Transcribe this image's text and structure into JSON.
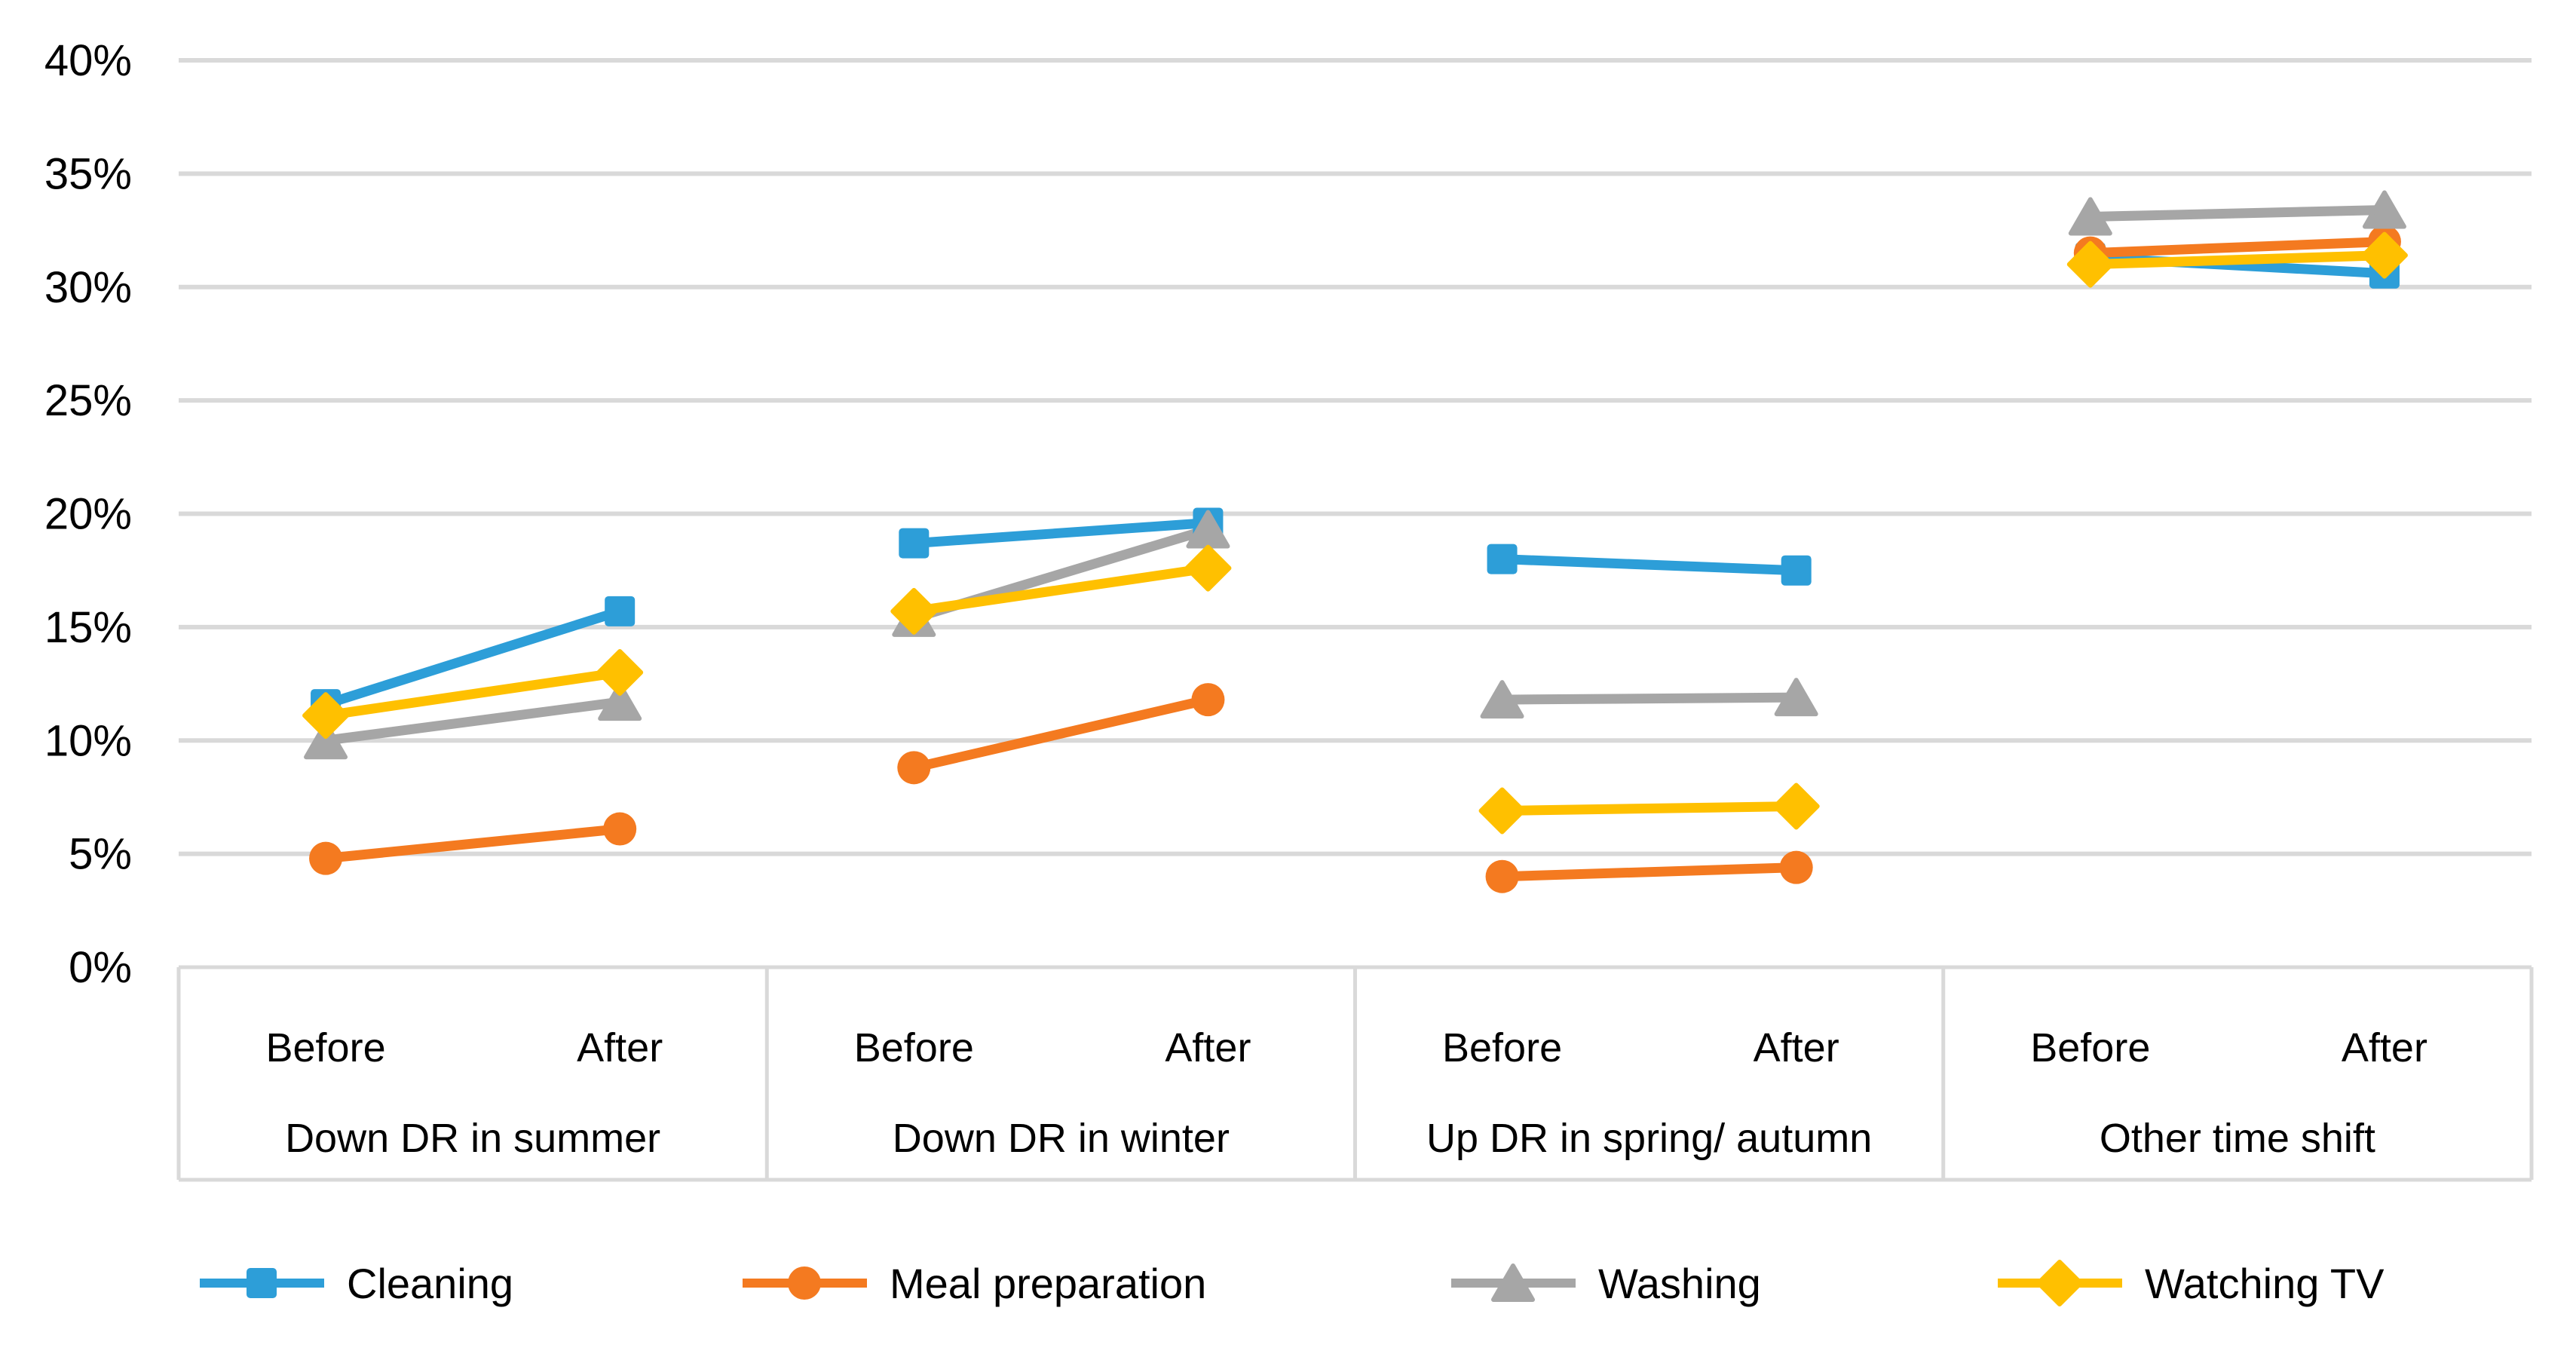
{
  "chart_data": {
    "type": "line",
    "title": "",
    "unit": "%",
    "y_axis": {
      "min": 0,
      "max": 40,
      "step": 5,
      "tick_labels": [
        "0%",
        "5%",
        "10%",
        "15%",
        "20%",
        "25%",
        "30%",
        "35%",
        "40%"
      ],
      "tick_suffix": "%"
    },
    "grid": true,
    "gridline_color": "#D9D9D9",
    "axis_band_color": "#D9D9D9",
    "text_color": "#000000",
    "x_groups": [
      {
        "label": "Down DR in summer",
        "categories": [
          "Before",
          "After"
        ]
      },
      {
        "label": "Down DR in winter",
        "categories": [
          "Before",
          "After"
        ]
      },
      {
        "label": "Up DR in spring/ autumn",
        "categories": [
          "Before",
          "After"
        ]
      },
      {
        "label": "Other time shift",
        "categories": [
          "Before",
          "After"
        ]
      }
    ],
    "series": [
      {
        "name": "Cleaning",
        "color": "#2D9ED8",
        "marker": "square",
        "values": [
          [
            11.6,
            15.7
          ],
          [
            18.7,
            19.6
          ],
          [
            18.0,
            17.5
          ],
          [
            31.3,
            30.6
          ]
        ]
      },
      {
        "name": "Meal preparation",
        "color": "#F47A20",
        "marker": "circle",
        "values": [
          [
            4.8,
            6.1
          ],
          [
            8.8,
            11.8
          ],
          [
            4.0,
            4.4
          ],
          [
            31.5,
            32.0
          ]
        ]
      },
      {
        "name": "Washing",
        "color": "#A6A6A6",
        "marker": "triangle",
        "values": [
          [
            10.0,
            11.7
          ],
          [
            15.4,
            19.3
          ],
          [
            11.8,
            11.9
          ],
          [
            33.1,
            33.4
          ]
        ]
      },
      {
        "name": "Watching TV",
        "color": "#FFC000",
        "marker": "diamond",
        "values": [
          [
            11.1,
            13.0
          ],
          [
            15.7,
            17.6
          ],
          [
            6.9,
            7.1
          ],
          [
            31.0,
            31.4
          ]
        ]
      }
    ],
    "legend": {
      "position": "bottom",
      "items": [
        "Cleaning",
        "Meal preparation",
        "Washing",
        "Watching TV"
      ]
    }
  }
}
